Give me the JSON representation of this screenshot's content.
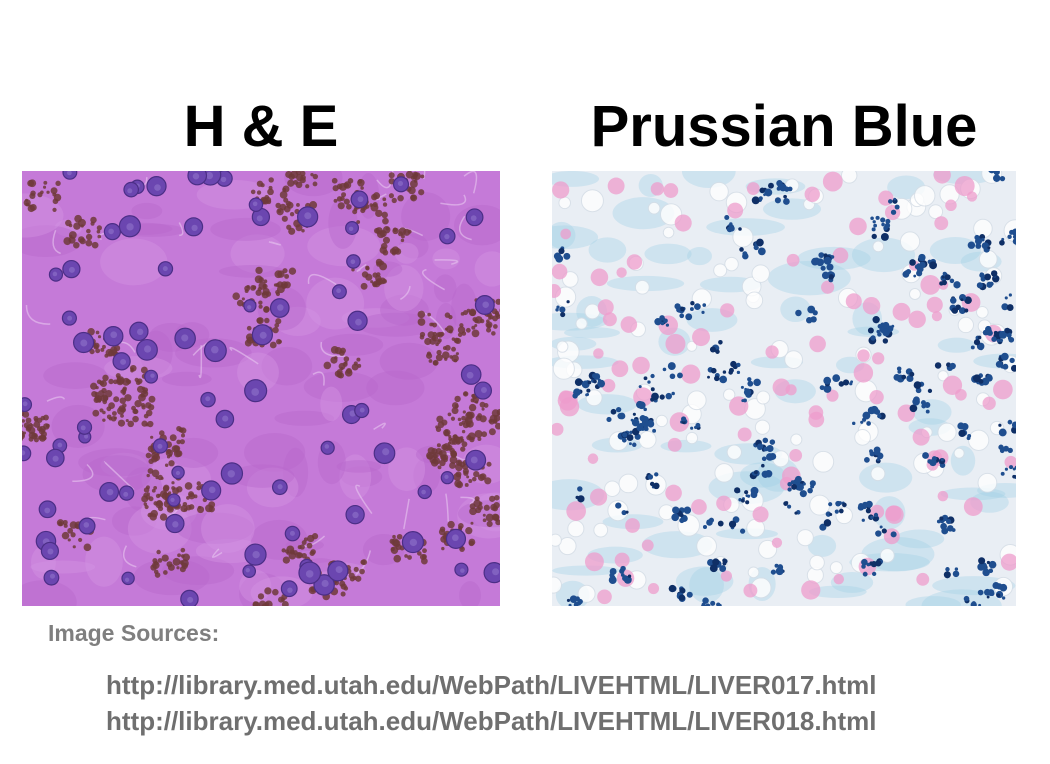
{
  "titles": {
    "left": "H & E",
    "right": "Prussian Blue"
  },
  "images": {
    "he": {
      "subject": "liver histology, H&E stain",
      "colors": {
        "background": "#c57ad8",
        "nucleus": "#6b46b0",
        "pigment": "#6e3a3a"
      }
    },
    "prussian_blue": {
      "subject": "liver histology, Prussian blue stain",
      "colors": {
        "background": "#e9eef4",
        "nucleus": "#ee9ccc",
        "iron": "#1f4e8f"
      }
    }
  },
  "sources": {
    "label": "Image Sources:",
    "links": [
      "http://library.med.utah.edu/WebPath/LIVEHTML/LIVER017.html",
      "http://library.med.utah.edu/WebPath/LIVEHTML/LIVER018.html"
    ]
  }
}
